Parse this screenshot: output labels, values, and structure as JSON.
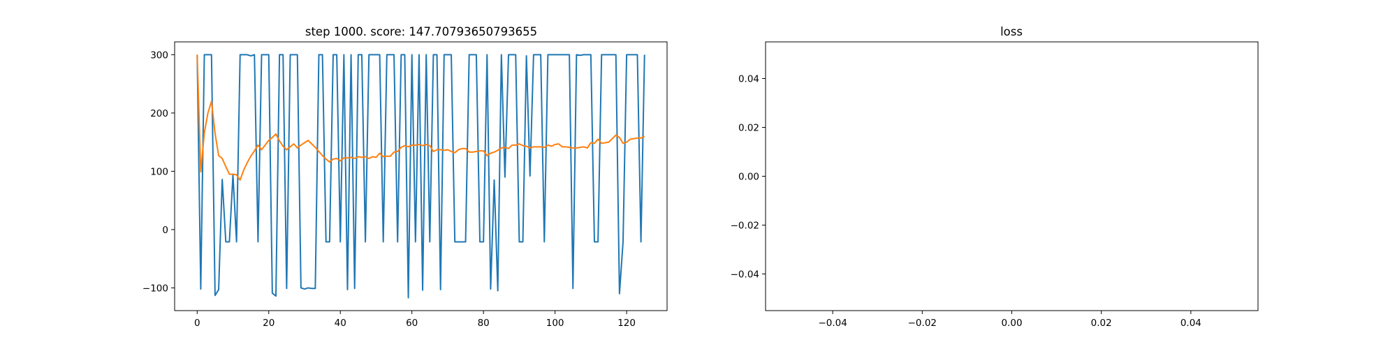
{
  "chart_data": [
    {
      "type": "line",
      "title": "step 1000. score: 147.70793650793655",
      "xlabel": "",
      "ylabel": "",
      "xlim": [
        -6.3,
        131.3
      ],
      "ylim": [
        -139,
        322
      ],
      "xticks": [
        0,
        20,
        40,
        60,
        80,
        100,
        120
      ],
      "yticks": [
        -100,
        0,
        100,
        200,
        300
      ],
      "grid": false,
      "legend": "none",
      "series": [
        {
          "color": "#1f77b4",
          "x": [
            0,
            1,
            2,
            3,
            4,
            5,
            6,
            7,
            8,
            9,
            10,
            11,
            12,
            13,
            14,
            15,
            16,
            17,
            18,
            19,
            20,
            21,
            22,
            23,
            24,
            25,
            26,
            27,
            28,
            29,
            30,
            31,
            32,
            33,
            34,
            35,
            36,
            37,
            38,
            39,
            40,
            41,
            42,
            43,
            44,
            45,
            46,
            47,
            48,
            49,
            50,
            51,
            52,
            53,
            54,
            55,
            56,
            57,
            58,
            59,
            60,
            61,
            62,
            63,
            64,
            65,
            66,
            67,
            68,
            69,
            70,
            71,
            72,
            73,
            74,
            75,
            76,
            77,
            78,
            79,
            80,
            81,
            82,
            83,
            84,
            85,
            86,
            87,
            88,
            89,
            90,
            91,
            92,
            93,
            94,
            95,
            96,
            97,
            98,
            99,
            100,
            101,
            102,
            103,
            104,
            105,
            106,
            107,
            108,
            109,
            110,
            111,
            112,
            113,
            114,
            115,
            116,
            117,
            118,
            119,
            120,
            121,
            122,
            123,
            124,
            125
          ],
          "values": [
            300,
            -102,
            300,
            300,
            300,
            -113,
            -103,
            86,
            -21,
            -21,
            94,
            -21,
            300,
            300,
            300,
            298,
            300,
            -21,
            300,
            300,
            300,
            -109,
            -114,
            300,
            300,
            -101,
            300,
            300,
            300,
            -100,
            -102,
            -100,
            -101,
            -101,
            300,
            300,
            -21,
            -21,
            300,
            300,
            -21,
            300,
            -103,
            300,
            -101,
            300,
            300,
            -21,
            300,
            300,
            300,
            300,
            -21,
            300,
            300,
            300,
            -21,
            300,
            300,
            -117,
            300,
            -21,
            300,
            -104,
            300,
            -21,
            300,
            300,
            -103,
            300,
            300,
            300,
            -21,
            -21,
            -21,
            -21,
            300,
            300,
            300,
            -21,
            -21,
            300,
            -102,
            85,
            -105,
            300,
            90,
            300,
            300,
            300,
            -21,
            -21,
            298,
            92,
            300,
            300,
            300,
            -21,
            300,
            300,
            300,
            300,
            300,
            300,
            300,
            -101,
            300,
            299,
            300,
            300,
            300,
            -21,
            -21,
            300,
            300,
            300,
            300,
            300,
            -110,
            -21,
            300,
            300,
            300,
            300,
            -21,
            300
          ]
        },
        {
          "color": "#ff7f0e",
          "x": [
            0,
            1,
            2,
            3,
            4,
            5,
            6,
            7,
            8,
            9,
            10,
            11,
            12,
            13,
            14,
            15,
            16,
            17,
            18,
            19,
            20,
            21,
            22,
            23,
            24,
            25,
            26,
            27,
            28,
            29,
            30,
            31,
            32,
            33,
            34,
            35,
            36,
            37,
            38,
            39,
            40,
            41,
            42,
            43,
            44,
            45,
            46,
            47,
            48,
            49,
            50,
            51,
            52,
            53,
            54,
            55,
            56,
            57,
            58,
            59,
            60,
            61,
            62,
            63,
            64,
            65,
            66,
            67,
            68,
            69,
            70,
            71,
            72,
            73,
            74,
            75,
            76,
            77,
            78,
            79,
            80,
            81,
            82,
            83,
            84,
            85,
            86,
            87,
            88,
            89,
            90,
            91,
            92,
            93,
            94,
            95,
            96,
            97,
            98,
            99,
            100,
            101,
            102,
            103,
            104,
            105,
            106,
            107,
            108,
            109,
            110,
            111,
            112,
            113,
            114,
            115,
            116,
            117,
            118,
            119,
            120,
            121,
            122,
            123,
            124,
            125
          ],
          "values": [
            300,
            99,
            166,
            200,
            220,
            165,
            127,
            122,
            108,
            95,
            95,
            94,
            85,
            102,
            115,
            126,
            135,
            145,
            137,
            145,
            153,
            158,
            164,
            152,
            143,
            137,
            142,
            147,
            140,
            145,
            149,
            153,
            147,
            141,
            134,
            127,
            121,
            116,
            121,
            122,
            118,
            123,
            123,
            124,
            122,
            125,
            124,
            125,
            122,
            125,
            124,
            131,
            125,
            126,
            126,
            133,
            134,
            141,
            144,
            142,
            145,
            145,
            146,
            144,
            146,
            144,
            134,
            137,
            137,
            136,
            137,
            134,
            132,
            137,
            139,
            139,
            133,
            133,
            134,
            135,
            135,
            127,
            131,
            133,
            136,
            140,
            141,
            139,
            145,
            145,
            147,
            144,
            143,
            140,
            142,
            142,
            142,
            141,
            145,
            143,
            146,
            147,
            142,
            142,
            141,
            140,
            140,
            141,
            142,
            140,
            149,
            148,
            155,
            148,
            149,
            150,
            156,
            162,
            158,
            148,
            150,
            155,
            156,
            157,
            157,
            160
          ]
        }
      ]
    },
    {
      "type": "line",
      "title": "loss",
      "xlabel": "",
      "ylabel": "",
      "xlim": [
        -0.055,
        0.055
      ],
      "ylim": [
        -0.055,
        0.055
      ],
      "xticks": [
        -0.04,
        -0.02,
        0.0,
        0.02,
        0.04
      ],
      "yticks": [
        -0.04,
        -0.02,
        0.0,
        0.02,
        0.04
      ],
      "xtick_labels": [
        "−0.04",
        "−0.02",
        "0.00",
        "0.02",
        "0.04"
      ],
      "ytick_labels": [
        "−0.04",
        "−0.02",
        "0.00",
        "0.02",
        "0.04"
      ],
      "grid": false,
      "legend": "none",
      "series": []
    }
  ]
}
